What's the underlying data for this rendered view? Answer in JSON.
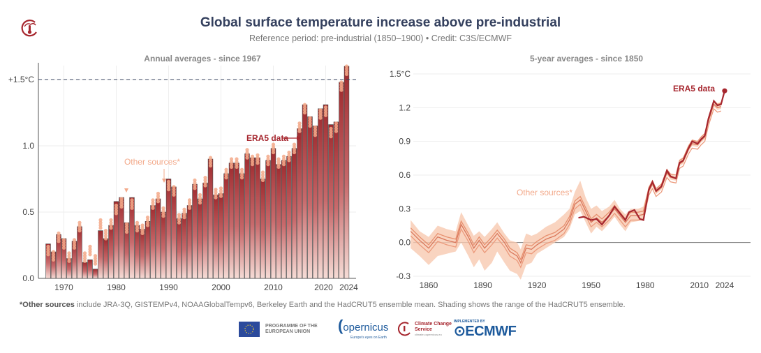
{
  "header": {
    "title": "Global surface temperature increase above pre-industrial",
    "subtitle": "Reference period: pre-industrial (1850–1900) • Credit: C3S/ECMWF",
    "logo_icon": "climate-thermometer-icon"
  },
  "colors": {
    "era5": "#a6262e",
    "other": "#f3a98a",
    "band": "#f8c9b0",
    "threshold": "#34405e",
    "title": "#34405e"
  },
  "chart_data": [
    {
      "type": "bar",
      "title": "Annual averages - since 1967",
      "ylim": [
        0,
        1.6
      ],
      "yticks": [
        {
          "v": 0,
          "label": "0.0"
        },
        {
          "v": 0.5,
          "label": "0.5"
        },
        {
          "v": 1.0,
          "label": "1.0"
        },
        {
          "v": 1.5,
          "label": "+1.5°C"
        }
      ],
      "xticks": [
        {
          "v": 1970,
          "label": "1970"
        },
        {
          "v": 1980,
          "label": "1980"
        },
        {
          "v": 1990,
          "label": "1990"
        },
        {
          "v": 2000,
          "label": "2000"
        },
        {
          "v": 2010,
          "label": "2010"
        },
        {
          "v": 2020,
          "label": "2020"
        },
        {
          "v": 2024,
          "label": "2024"
        }
      ],
      "threshold": 1.5,
      "grid": true,
      "categories": [
        1967,
        1968,
        1969,
        1970,
        1971,
        1972,
        1973,
        1974,
        1975,
        1976,
        1977,
        1978,
        1979,
        1980,
        1981,
        1982,
        1983,
        1984,
        1985,
        1986,
        1987,
        1988,
        1989,
        1990,
        1991,
        1992,
        1993,
        1994,
        1995,
        1996,
        1997,
        1998,
        1999,
        2000,
        2001,
        2002,
        2003,
        2004,
        2005,
        2006,
        2007,
        2008,
        2009,
        2010,
        2011,
        2012,
        2013,
        2014,
        2015,
        2016,
        2017,
        2018,
        2019,
        2020,
        2021,
        2022,
        2023,
        2024
      ],
      "series": [
        {
          "name": "ERA5 data",
          "values": [
            0.26,
            0.2,
            0.33,
            0.3,
            0.15,
            0.28,
            0.39,
            0.12,
            0.14,
            0.07,
            0.36,
            0.3,
            0.4,
            0.58,
            0.61,
            0.42,
            0.61,
            0.4,
            0.37,
            0.43,
            0.55,
            0.6,
            0.5,
            0.75,
            0.69,
            0.45,
            0.49,
            0.55,
            0.71,
            0.6,
            0.72,
            0.9,
            0.63,
            0.64,
            0.79,
            0.87,
            0.87,
            0.79,
            0.94,
            0.91,
            0.91,
            0.75,
            0.89,
            0.98,
            0.86,
            0.89,
            0.92,
            0.98,
            1.13,
            1.31,
            1.22,
            1.15,
            1.28,
            1.31,
            1.16,
            1.18,
            1.48,
            1.6
          ]
        },
        {
          "name": "Other sources*",
          "values": [
            0.22,
            0.18,
            0.32,
            0.27,
            0.17,
            0.27,
            0.4,
            0.17,
            0.22,
            0.15,
            0.42,
            0.34,
            0.42,
            0.53,
            0.58,
            0.39,
            0.57,
            0.4,
            0.38,
            0.44,
            0.57,
            0.62,
            0.51,
            0.71,
            0.67,
            0.46,
            0.5,
            0.57,
            0.72,
            0.61,
            0.74,
            0.89,
            0.65,
            0.66,
            0.8,
            0.88,
            0.88,
            0.8,
            0.95,
            0.9,
            0.91,
            0.78,
            0.9,
            0.99,
            0.88,
            0.9,
            0.93,
            0.99,
            1.15,
            1.29,
            1.19,
            1.12,
            1.25,
            1.27,
            1.11,
            1.15,
            1.46,
            1.58
          ]
        }
      ],
      "annotations": [
        {
          "text": "ERA5 data",
          "target": 2014
        },
        {
          "text": "Other sources*",
          "target": 1988
        }
      ]
    },
    {
      "type": "line",
      "title": "5-year averages - since 1850",
      "ylim": [
        -0.3,
        1.5
      ],
      "xlim": [
        1850,
        2025
      ],
      "yticks": [
        {
          "v": -0.3,
          "label": "-0.3"
        },
        {
          "v": 0,
          "label": "0.0"
        },
        {
          "v": 0.3,
          "label": "0.3"
        },
        {
          "v": 0.6,
          "label": "0.6"
        },
        {
          "v": 0.9,
          "label": "0.9"
        },
        {
          "v": 1.2,
          "label": "1.2"
        },
        {
          "v": 1.5,
          "label": "1.5°C"
        }
      ],
      "xticks": [
        {
          "v": 1860,
          "label": "1860"
        },
        {
          "v": 1890,
          "label": "1890"
        },
        {
          "v": 1920,
          "label": "1920"
        },
        {
          "v": 1950,
          "label": "1950"
        },
        {
          "v": 1980,
          "label": "1980"
        },
        {
          "v": 2010,
          "label": "2010"
        },
        {
          "v": 2024,
          "label": "2024"
        }
      ],
      "grid": true,
      "series": [
        {
          "name": "ERA5 data",
          "x": [
            1943,
            1946,
            1950,
            1953,
            1956,
            1960,
            1963,
            1966,
            1969,
            1971,
            1974,
            1977,
            1979,
            1982,
            1984,
            1986,
            1989,
            1992,
            1994,
            1997,
            1999,
            2001,
            2004,
            2006,
            2009,
            2011,
            2013,
            2015,
            2018,
            2020,
            2022,
            2024
          ],
          "y": [
            0.22,
            0.23,
            0.2,
            0.21,
            0.16,
            0.24,
            0.32,
            0.26,
            0.2,
            0.27,
            0.29,
            0.21,
            0.2,
            0.47,
            0.54,
            0.46,
            0.5,
            0.64,
            0.59,
            0.57,
            0.71,
            0.73,
            0.84,
            0.9,
            0.88,
            0.92,
            0.95,
            1.1,
            1.26,
            1.22,
            1.23,
            1.35
          ]
        },
        {
          "name": "Other sources*",
          "x": [
            1850,
            1855,
            1860,
            1865,
            1870,
            1875,
            1878,
            1882,
            1885,
            1888,
            1891,
            1895,
            1898,
            1902,
            1905,
            1909,
            1911,
            1914,
            1917,
            1920,
            1925,
            1930,
            1935,
            1938,
            1941,
            1944,
            1947,
            1950,
            1953,
            1956,
            1960,
            1963,
            1966,
            1969,
            1972,
            1976,
            1979,
            1982,
            1984,
            1986,
            1989,
            1992,
            1994,
            1997,
            1999,
            2001,
            2004,
            2006,
            2009,
            2011,
            2013,
            2015,
            2018,
            2020,
            2022
          ],
          "y": [
            0.1,
            0.02,
            -0.05,
            0.05,
            0.02,
            0.0,
            0.16,
            0.05,
            -0.05,
            0.02,
            -0.05,
            0.02,
            0.08,
            0.0,
            -0.08,
            -0.12,
            -0.18,
            -0.05,
            -0.06,
            -0.02,
            0.03,
            0.06,
            0.12,
            0.2,
            0.34,
            0.38,
            0.28,
            0.18,
            0.22,
            0.18,
            0.24,
            0.3,
            0.24,
            0.18,
            0.24,
            0.24,
            0.25,
            0.46,
            0.52,
            0.45,
            0.49,
            0.62,
            0.58,
            0.57,
            0.7,
            0.72,
            0.83,
            0.88,
            0.87,
            0.91,
            0.94,
            1.08,
            1.23,
            1.2,
            1.21
          ],
          "band_low": [
            -0.05,
            -0.12,
            -0.2,
            -0.12,
            -0.1,
            -0.08,
            0.0,
            -0.12,
            -0.22,
            -0.15,
            -0.25,
            -0.18,
            -0.08,
            -0.18,
            -0.25,
            -0.28,
            -0.33,
            -0.2,
            -0.18,
            -0.1,
            -0.05,
            0.0,
            0.05,
            0.12,
            0.25,
            0.28,
            0.18,
            0.08,
            0.14,
            0.1,
            0.17,
            0.23,
            0.16,
            0.1,
            0.18,
            0.19,
            0.2,
            0.43,
            0.5,
            0.43,
            0.47,
            0.6,
            0.56,
            0.55,
            0.68,
            0.7,
            0.81,
            0.86,
            0.85,
            0.89,
            0.92,
            1.06,
            1.21,
            1.18,
            1.19
          ],
          "band_high": [
            0.2,
            0.1,
            0.05,
            0.15,
            0.12,
            0.1,
            0.27,
            0.15,
            0.06,
            0.1,
            0.05,
            0.12,
            0.18,
            0.08,
            0.02,
            0.0,
            -0.06,
            0.08,
            0.06,
            0.08,
            0.14,
            0.18,
            0.25,
            0.3,
            0.45,
            0.55,
            0.4,
            0.3,
            0.33,
            0.28,
            0.32,
            0.38,
            0.3,
            0.25,
            0.3,
            0.3,
            0.32,
            0.5,
            0.56,
            0.48,
            0.53,
            0.66,
            0.61,
            0.59,
            0.74,
            0.76,
            0.86,
            0.92,
            0.9,
            0.94,
            0.97,
            1.12,
            1.27,
            1.24,
            1.25
          ]
        }
      ],
      "annotations": [
        {
          "text": "ERA5 data"
        },
        {
          "text": "Other sources*"
        }
      ]
    }
  ],
  "footnote": {
    "bold": "*Other sources",
    "text": " include JRA-3Q, GISTEMPv4, NOAAGlobalTempv6, Berkeley Earth and the HadCRUT5 ensemble mean. Shading shows the range of the HadCRUT5 ensemble."
  },
  "logos": {
    "eu": "PROGRAMME OF THE EUROPEAN UNION",
    "copernicus": "opernicus",
    "copernicus_tag": "Europe's eyes on Earth",
    "c3s": "Climate Change Service",
    "c3s_url": "climate.copernicus.eu",
    "ecmwf_pre": "IMPLEMENTED BY",
    "ecmwf": "ECMWF"
  }
}
